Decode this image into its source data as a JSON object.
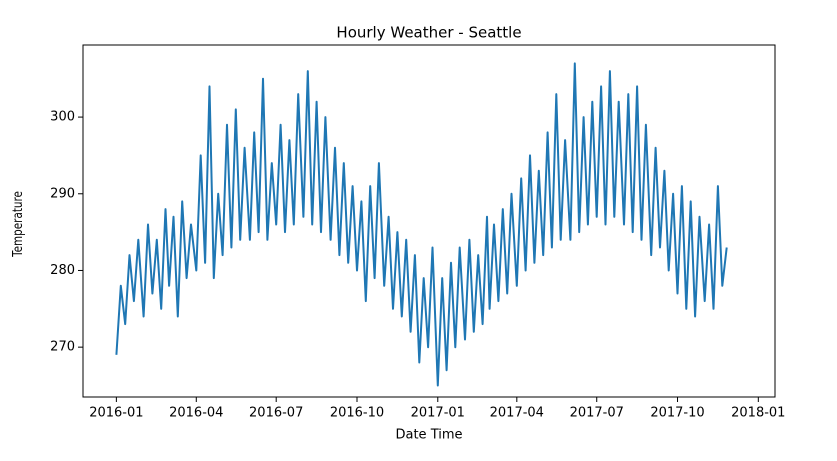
{
  "chart_data": {
    "type": "line",
    "title": "Hourly Weather - Seattle",
    "xlabel": "Date Time",
    "ylabel": "Temperature",
    "x": [
      "2016-01-01",
      "2016-01-06",
      "2016-01-11",
      "2016-01-16",
      "2016-01-21",
      "2016-01-26",
      "2016-02-01",
      "2016-02-06",
      "2016-02-11",
      "2016-02-16",
      "2016-02-21",
      "2016-02-26",
      "2016-03-01",
      "2016-03-06",
      "2016-03-11",
      "2016-03-16",
      "2016-03-21",
      "2016-03-26",
      "2016-04-01",
      "2016-04-06",
      "2016-04-11",
      "2016-04-16",
      "2016-04-21",
      "2016-04-26",
      "2016-05-01",
      "2016-05-06",
      "2016-05-11",
      "2016-05-16",
      "2016-05-21",
      "2016-05-26",
      "2016-06-01",
      "2016-06-06",
      "2016-06-11",
      "2016-06-16",
      "2016-06-21",
      "2016-06-26",
      "2016-07-01",
      "2016-07-06",
      "2016-07-11",
      "2016-07-16",
      "2016-07-21",
      "2016-07-26",
      "2016-08-01",
      "2016-08-06",
      "2016-08-11",
      "2016-08-16",
      "2016-08-21",
      "2016-08-26",
      "2016-09-01",
      "2016-09-06",
      "2016-09-11",
      "2016-09-16",
      "2016-09-21",
      "2016-09-26",
      "2016-10-01",
      "2016-10-06",
      "2016-10-11",
      "2016-10-16",
      "2016-10-21",
      "2016-10-26",
      "2016-11-01",
      "2016-11-06",
      "2016-11-11",
      "2016-11-16",
      "2016-11-21",
      "2016-11-26",
      "2016-12-01",
      "2016-12-06",
      "2016-12-11",
      "2016-12-16",
      "2016-12-21",
      "2016-12-26",
      "2017-01-01",
      "2017-01-06",
      "2017-01-11",
      "2017-01-16",
      "2017-01-21",
      "2017-01-26",
      "2017-02-01",
      "2017-02-06",
      "2017-02-11",
      "2017-02-16",
      "2017-02-21",
      "2017-02-26",
      "2017-03-01",
      "2017-03-06",
      "2017-03-11",
      "2017-03-16",
      "2017-03-21",
      "2017-03-26",
      "2017-04-01",
      "2017-04-06",
      "2017-04-11",
      "2017-04-16",
      "2017-04-21",
      "2017-04-26",
      "2017-05-01",
      "2017-05-06",
      "2017-05-11",
      "2017-05-16",
      "2017-05-21",
      "2017-05-26",
      "2017-06-01",
      "2017-06-06",
      "2017-06-11",
      "2017-06-16",
      "2017-06-21",
      "2017-06-26",
      "2017-07-01",
      "2017-07-06",
      "2017-07-11",
      "2017-07-16",
      "2017-07-21",
      "2017-07-26",
      "2017-08-01",
      "2017-08-06",
      "2017-08-11",
      "2017-08-16",
      "2017-08-21",
      "2017-08-26",
      "2017-09-01",
      "2017-09-06",
      "2017-09-11",
      "2017-09-16",
      "2017-09-21",
      "2017-09-26",
      "2017-10-01",
      "2017-10-06",
      "2017-10-11",
      "2017-10-16",
      "2017-10-21",
      "2017-10-26",
      "2017-11-01",
      "2017-11-06",
      "2017-11-11",
      "2017-11-16",
      "2017-11-21",
      "2017-11-26"
    ],
    "series": [
      {
        "name": "Temperature",
        "color": "#1f77b4",
        "values": [
          269,
          278,
          273,
          282,
          276,
          284,
          274,
          286,
          277,
          284,
          275,
          288,
          278,
          287,
          274,
          289,
          279,
          286,
          280,
          295,
          281,
          304,
          279,
          290,
          282,
          299,
          283,
          301,
          284,
          296,
          284,
          298,
          285,
          305,
          284,
          294,
          286,
          299,
          285,
          297,
          286,
          303,
          287,
          306,
          286,
          302,
          285,
          300,
          284,
          296,
          282,
          294,
          281,
          291,
          280,
          289,
          276,
          291,
          279,
          294,
          278,
          287,
          275,
          285,
          274,
          284,
          272,
          282,
          268,
          279,
          270,
          283,
          265,
          279,
          267,
          281,
          270,
          283,
          271,
          284,
          272,
          282,
          273,
          287,
          275,
          286,
          276,
          288,
          277,
          290,
          278,
          292,
          280,
          295,
          281,
          293,
          282,
          298,
          283,
          303,
          284,
          297,
          284,
          307,
          285,
          300,
          286,
          302,
          287,
          304,
          286,
          306,
          287,
          302,
          286,
          303,
          285,
          304,
          284,
          299,
          282,
          296,
          283,
          293,
          280,
          290,
          277,
          291,
          275,
          289,
          274,
          287,
          276,
          286,
          275,
          291,
          278,
          283
        ]
      }
    ],
    "xlim": [
      "2015-11-24",
      "2018-01-20"
    ],
    "xticks": [
      {
        "value": "2016-01-01",
        "label": "2016-01"
      },
      {
        "value": "2016-04-01",
        "label": "2016-04"
      },
      {
        "value": "2016-07-01",
        "label": "2016-07"
      },
      {
        "value": "2016-10-01",
        "label": "2016-10"
      },
      {
        "value": "2017-01-01",
        "label": "2017-01"
      },
      {
        "value": "2017-04-01",
        "label": "2017-04"
      },
      {
        "value": "2017-07-01",
        "label": "2017-07"
      },
      {
        "value": "2017-10-01",
        "label": "2017-10"
      },
      {
        "value": "2018-01-01",
        "label": "2018-01"
      }
    ],
    "ylim": [
      263.5,
      309.4
    ],
    "yticks": [
      270,
      280,
      290,
      300
    ]
  }
}
